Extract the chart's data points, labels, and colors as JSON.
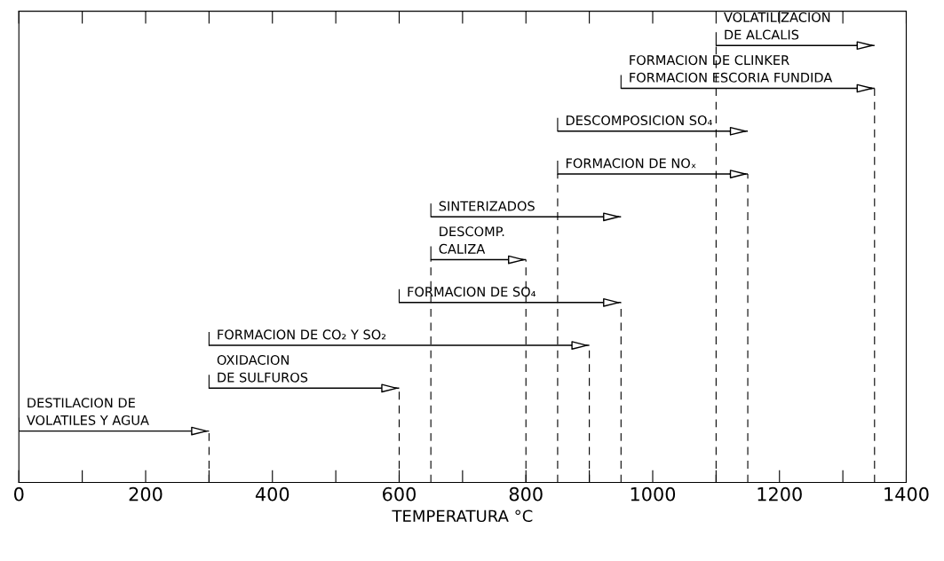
{
  "chart_data": {
    "type": "bar",
    "orientation": "horizontal",
    "xlabel": "TEMPERATURA °C",
    "categories": [
      "VOLATILIZACION\nDE ALCALIS",
      "FORMACION DE CLINKER\nFORMACION ESCORIA FUNDIDA",
      "DESCOMPOSICION SO₄",
      "FORMACION DE NOₓ",
      "SINTERIZADOS",
      "DESCOMP.\nCALIZA",
      "FORMACION DE SO₄",
      "FORMACION DE CO₂ Y SO₂",
      "OXIDACION\nDE SULFUROS",
      "DESTILACION DE\nVOLATILES Y AGUA"
    ],
    "base": [
      1100,
      950,
      850,
      850,
      650,
      650,
      600,
      300,
      300,
      0
    ],
    "values": [
      250,
      400,
      300,
      300,
      300,
      150,
      350,
      600,
      300,
      300
    ],
    "color": "#000000",
    "xlim": [
      0,
      1400
    ],
    "xticks": [
      0,
      {
        "value": 100,
        "label": null
      },
      200,
      {
        "value": 300,
        "label": null
      },
      400,
      {
        "value": 500,
        "label": null
      },
      600,
      {
        "value": 700,
        "label": null
      },
      800,
      {
        "value": 900,
        "label": null
      },
      1000,
      {
        "value": 1100,
        "label": null
      },
      1200,
      {
        "value": 1300,
        "label": null
      },
      1400
    ],
    "tick_labels": "x",
    "ref_lines": [
      {
        "axis": "x",
        "value": 300,
        "line_style": "dashed"
      },
      {
        "axis": "x",
        "value": 600,
        "line_style": "dashed"
      },
      {
        "axis": "x",
        "value": 650,
        "line_style": "dashed"
      },
      {
        "axis": "x",
        "value": 800,
        "line_style": "dashed"
      },
      {
        "axis": "x",
        "value": 850,
        "line_style": "dashed"
      },
      {
        "axis": "x",
        "value": 900,
        "line_style": "dashed"
      },
      {
        "axis": "x",
        "value": 950,
        "line_style": "dashed"
      },
      {
        "axis": "x",
        "value": 1100,
        "line_style": "dashed"
      },
      {
        "axis": "x",
        "value": 1150,
        "line_style": "dashed"
      },
      {
        "axis": "x",
        "value": 1350,
        "line_style": "dashed"
      }
    ],
    "grid": false
  }
}
